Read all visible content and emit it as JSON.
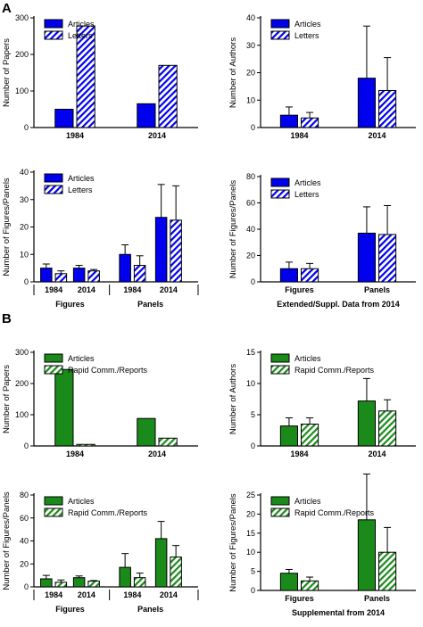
{
  "panel_labels": [
    "A",
    "B"
  ],
  "colors": {
    "blue": "#0000ee",
    "green": "#1a8a1a"
  },
  "chart_data": [
    {
      "type": "bar",
      "panel": "A",
      "ylabel": "Number of Papers",
      "ylim": [
        0,
        300
      ],
      "yticks": [
        0,
        100,
        200,
        300
      ],
      "categories": [
        "1984",
        "2014"
      ],
      "series": [
        {
          "name": "Articles",
          "pattern": "solid",
          "color": "blue",
          "values": [
            50,
            65
          ]
        },
        {
          "name": "Letters",
          "pattern": "hatch",
          "color": "blue",
          "values": [
            278,
            170
          ]
        }
      ]
    },
    {
      "type": "bar",
      "ylabel": "Number of Authors",
      "ylim": [
        0,
        40
      ],
      "yticks": [
        0,
        10,
        20,
        30,
        40
      ],
      "categories": [
        "1984",
        "2014"
      ],
      "series": [
        {
          "name": "Articles",
          "pattern": "solid",
          "color": "blue",
          "values": [
            4.5,
            18
          ],
          "errors": [
            3,
            19
          ]
        },
        {
          "name": "Letters",
          "pattern": "hatch",
          "color": "blue",
          "values": [
            3.5,
            13.5
          ],
          "errors": [
            2,
            12
          ]
        }
      ]
    },
    {
      "type": "bar",
      "ylabel": "Number of Figures/Panels",
      "ylim": [
        0,
        40
      ],
      "yticks": [
        0,
        10,
        20,
        30,
        40
      ],
      "categories": [
        "1984",
        "2014",
        "1984",
        "2014"
      ],
      "groups": [
        "Figures",
        "Panels"
      ],
      "series": [
        {
          "name": "Articles",
          "pattern": "solid",
          "color": "blue",
          "values": [
            5,
            5,
            10,
            23.5
          ],
          "errors": [
            1.5,
            1,
            3.5,
            12
          ]
        },
        {
          "name": "Letters",
          "pattern": "hatch",
          "color": "blue",
          "values": [
            3,
            4,
            6,
            22.5
          ],
          "errors": [
            1,
            0.5,
            3.5,
            12.5
          ]
        }
      ]
    },
    {
      "type": "bar",
      "ylabel": "Number of Figures/Panels",
      "xlabel": "Extended/Suppl. Data from 2014",
      "ylim": [
        0,
        80
      ],
      "yticks": [
        0,
        20,
        40,
        60,
        80
      ],
      "categories": [
        "Figures",
        "Panels"
      ],
      "series": [
        {
          "name": "Articles",
          "pattern": "solid",
          "color": "blue",
          "values": [
            10,
            37
          ],
          "errors": [
            5,
            20
          ]
        },
        {
          "name": "Letters",
          "pattern": "hatch",
          "color": "blue",
          "values": [
            10,
            36
          ],
          "errors": [
            4,
            22
          ]
        }
      ]
    },
    {
      "type": "bar",
      "panel": "B",
      "ylabel": "Number of Papers",
      "ylim": [
        0,
        300
      ],
      "yticks": [
        0,
        100,
        200,
        300
      ],
      "categories": [
        "1984",
        "2014"
      ],
      "series": [
        {
          "name": "Articles",
          "pattern": "solid",
          "color": "green",
          "values": [
            245,
            88
          ]
        },
        {
          "name": "Rapid Comm./Reports",
          "pattern": "hatch",
          "color": "green",
          "values": [
            5,
            25
          ]
        }
      ]
    },
    {
      "type": "bar",
      "ylabel": "Number of Authors",
      "ylim": [
        0,
        15
      ],
      "yticks": [
        0,
        5,
        10,
        15
      ],
      "categories": [
        "1984",
        "2014"
      ],
      "series": [
        {
          "name": "Articles",
          "pattern": "solid",
          "color": "green",
          "values": [
            3.2,
            7.2
          ],
          "errors": [
            1.3,
            3.6
          ]
        },
        {
          "name": "Rapid Comm./Reports",
          "pattern": "hatch",
          "color": "green",
          "values": [
            3.5,
            5.6
          ],
          "errors": [
            1,
            1.8
          ]
        }
      ]
    },
    {
      "type": "bar",
      "ylabel": "Number of Figures/Panels",
      "ylim": [
        0,
        80
      ],
      "yticks": [
        0,
        20,
        40,
        60,
        80
      ],
      "categories": [
        "1984",
        "2014",
        "1984",
        "2014"
      ],
      "groups": [
        "Figures",
        "Panels"
      ],
      "series": [
        {
          "name": "Articles",
          "pattern": "solid",
          "color": "green",
          "values": [
            7,
            8,
            17,
            42
          ],
          "errors": [
            3,
            1.5,
            12,
            15
          ]
        },
        {
          "name": "Rapid Comm./Reports",
          "pattern": "hatch",
          "color": "green",
          "values": [
            4,
            5,
            8,
            26
          ],
          "errors": [
            2,
            0.5,
            4,
            10
          ]
        }
      ]
    },
    {
      "type": "bar",
      "ylabel": "Number of Figures/Panels",
      "xlabel": "Supplemental from 2014",
      "ylim": [
        0,
        25
      ],
      "yticks": [
        0,
        5,
        10,
        15,
        20,
        25
      ],
      "categories": [
        "Figures",
        "Panels"
      ],
      "series": [
        {
          "name": "Articles",
          "pattern": "solid",
          "color": "green",
          "values": [
            4.5,
            18.5
          ],
          "errors": [
            1,
            12
          ]
        },
        {
          "name": "Rapid Comm./Reports",
          "pattern": "hatch",
          "color": "green",
          "values": [
            2.5,
            10
          ],
          "errors": [
            1,
            6.5
          ]
        }
      ]
    }
  ]
}
